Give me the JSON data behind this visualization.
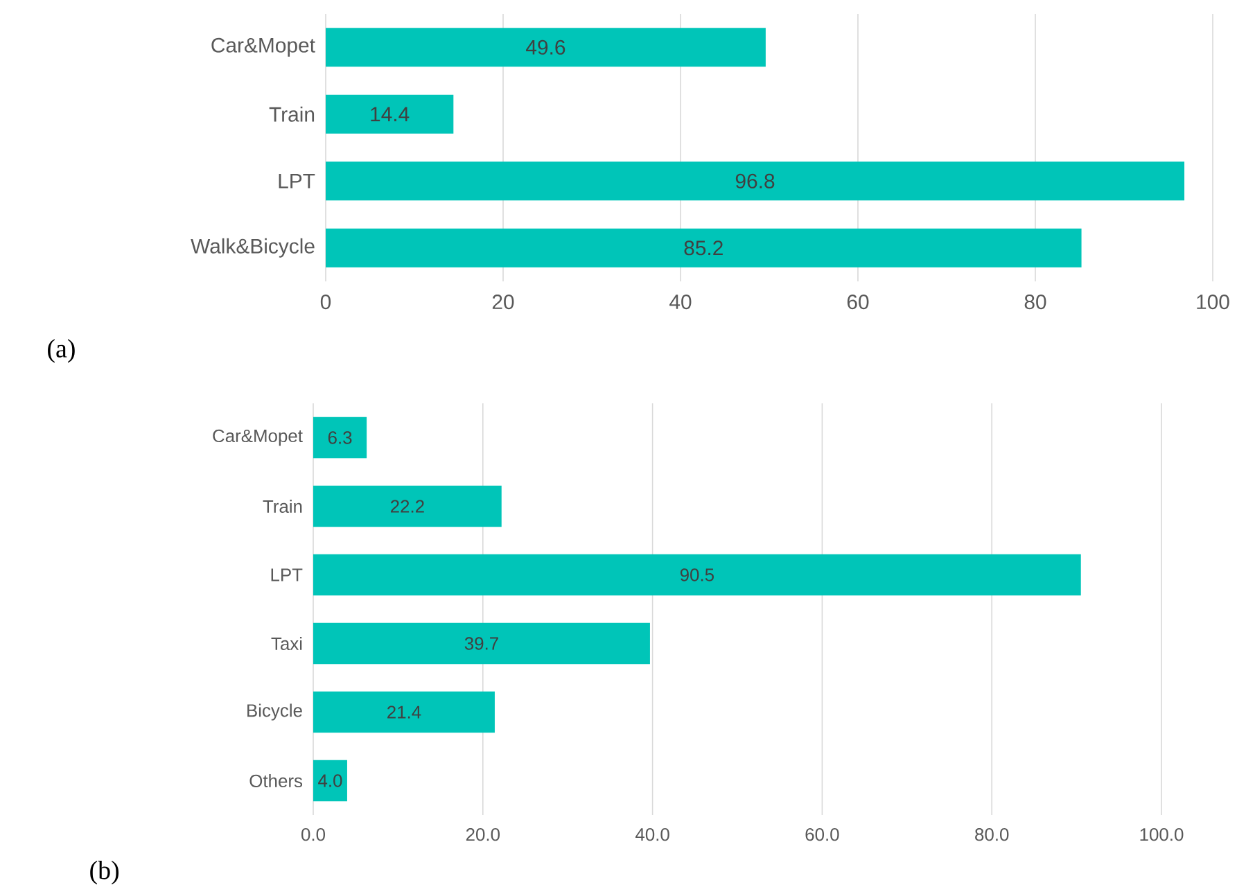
{
  "chart_data": [
    {
      "type": "bar",
      "orientation": "horizontal",
      "categories": [
        "Car&Mopet",
        "Train",
        "LPT",
        "Walk&Bicycle"
      ],
      "values": [
        49.6,
        14.4,
        96.8,
        85.2
      ],
      "value_labels": [
        "49.6",
        "14.4",
        "96.8",
        "85.2"
      ],
      "color": "#00c5b8",
      "xlim": [
        0,
        100
      ],
      "xticks": [
        0,
        20,
        40,
        60,
        80,
        100
      ],
      "grid": "x",
      "annotations": [
        "(a)"
      ]
    },
    {
      "type": "bar",
      "orientation": "horizontal",
      "categories": [
        "Car&Mopet",
        "Train",
        "LPT",
        "Taxi",
        "Bicycle",
        "Others"
      ],
      "values": [
        6.3,
        22.2,
        90.5,
        39.7,
        21.4,
        4.0
      ],
      "value_labels": [
        "6.3",
        "22.2",
        "90.5",
        "39.7",
        "21.4",
        "4.0"
      ],
      "color": "#00c5b8",
      "xlim": [
        0,
        100
      ],
      "xticks": [
        {
          "value": 0,
          "label": "0.0"
        },
        {
          "value": 20,
          "label": "20.0"
        },
        {
          "value": 40,
          "label": "40.0"
        },
        {
          "value": 60,
          "label": "60.0"
        },
        {
          "value": 80,
          "label": "80.0"
        },
        {
          "value": 100,
          "label": "100.0"
        }
      ],
      "grid": "x",
      "annotations": [
        "(b)"
      ]
    }
  ]
}
